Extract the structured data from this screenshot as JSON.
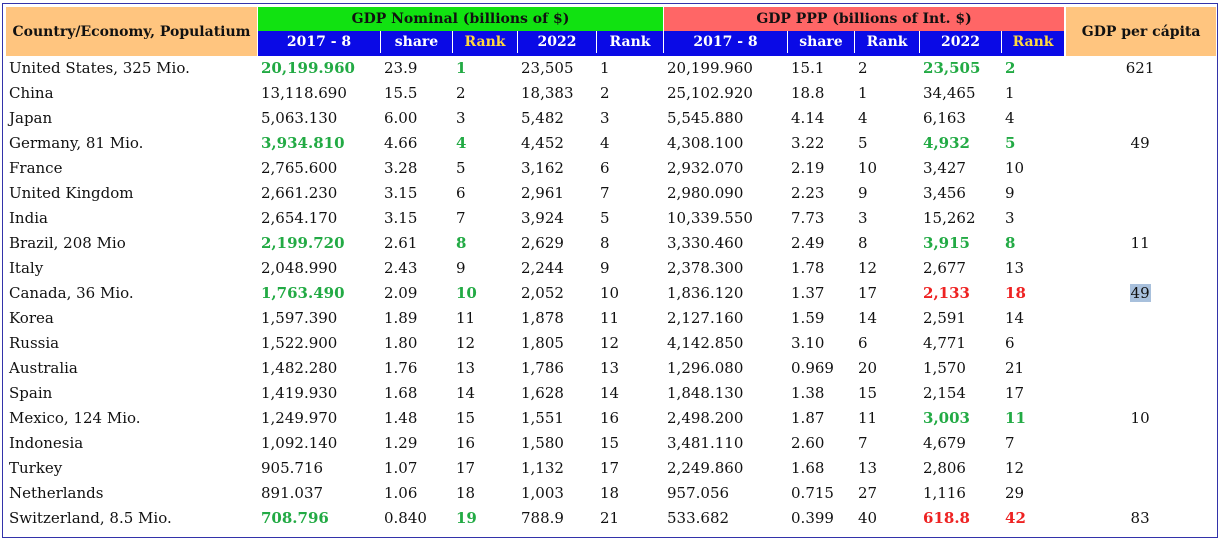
{
  "header": {
    "country": "Country/Economy, Populatium",
    "nominal_group": "GDP Nominal (billions of $)",
    "ppp_group": "GDP PPP (billions of Int. $)",
    "per_capita": "GDP per cápita",
    "sub": [
      "2017 - 8",
      "share",
      "Rank",
      "2022",
      "Rank",
      "2017 - 8",
      "share",
      "Rank",
      "2022",
      "Rank"
    ]
  },
  "colors": {
    "green_header": "#11e211",
    "red_header": "#ff6666",
    "orange_header": "#ffc57f",
    "blue_subheader": "#0a0ae6",
    "highlight_green": "#22aa44",
    "highlight_red": "#ee2222"
  },
  "rows": [
    {
      "country": "United States, 325 Mio.",
      "nom": "20,199.960",
      "nshare": "23.9",
      "nrank": "1",
      "n22": "23,505",
      "n22rank": "1",
      "ppp": "20,199.960",
      "pshare": "15.1",
      "prank": "2",
      "p22": "23,505",
      "p22rank": "2",
      "pc": "621",
      "hl_nom": "green",
      "hl_ppp22": "green"
    },
    {
      "country": "China",
      "nom": "13,118.690",
      "nshare": "15.5",
      "nrank": "2",
      "n22": "18,383",
      "n22rank": "2",
      "ppp": "25,102.920",
      "pshare": "18.8",
      "prank": "1",
      "p22": "34,465",
      "p22rank": "1",
      "pc": ""
    },
    {
      "country": "Japan",
      "nom": "5,063.130",
      "nshare": "6.00",
      "nrank": "3",
      "n22": "5,482",
      "n22rank": "3",
      "ppp": "5,545.880",
      "pshare": "4.14",
      "prank": "4",
      "p22": "6,163",
      "p22rank": "4",
      "pc": ""
    },
    {
      "country": "Germany, 81 Mio.",
      "nom": "3,934.810",
      "nshare": "4.66",
      "nrank": "4",
      "n22": "4,452",
      "n22rank": "4",
      "ppp": "4,308.100",
      "pshare": "3.22",
      "prank": "5",
      "p22": "4,932",
      "p22rank": "5",
      "pc": "49",
      "hl_nom": "green",
      "hl_ppp22": "green"
    },
    {
      "country": "France",
      "nom": "2,765.600",
      "nshare": "3.28",
      "nrank": "5",
      "n22": "3,162",
      "n22rank": "6",
      "ppp": "2,932.070",
      "pshare": "2.19",
      "prank": "10",
      "p22": "3,427",
      "p22rank": "10",
      "pc": ""
    },
    {
      "country": "United Kingdom",
      "nom": "2,661.230",
      "nshare": "3.15",
      "nrank": "6",
      "n22": "2,961",
      "n22rank": "7",
      "ppp": "2,980.090",
      "pshare": "2.23",
      "prank": "9",
      "p22": "3,456",
      "p22rank": "9",
      "pc": ""
    },
    {
      "country": "India",
      "nom": "2,654.170",
      "nshare": "3.15",
      "nrank": "7",
      "n22": "3,924",
      "n22rank": "5",
      "ppp": "10,339.550",
      "pshare": "7.73",
      "prank": "3",
      "p22": "15,262",
      "p22rank": "3",
      "pc": ""
    },
    {
      "country": "Brazil, 208 Mio",
      "nom": "2,199.720",
      "nshare": "2.61",
      "nrank": "8",
      "n22": "2,629",
      "n22rank": "8",
      "ppp": "3,330.460",
      "pshare": "2.49",
      "prank": "8",
      "p22": "3,915",
      "p22rank": "8",
      "pc": "11",
      "hl_nom": "green",
      "hl_ppp22": "green"
    },
    {
      "country": "Italy",
      "nom": "2,048.990",
      "nshare": "2.43",
      "nrank": "9",
      "n22": "2,244",
      "n22rank": "9",
      "ppp": "2,378.300",
      "pshare": "1.78",
      "prank": "12",
      "p22": "2,677",
      "p22rank": "13",
      "pc": ""
    },
    {
      "country": "Canada, 36 Mio.",
      "nom": "1,763.490",
      "nshare": "2.09",
      "nrank": "10",
      "n22": "2,052",
      "n22rank": "10",
      "ppp": "1,836.120",
      "pshare": "1.37",
      "prank": "17",
      "p22": "2,133",
      "p22rank": "18",
      "pc": "49",
      "hl_nom": "green",
      "hl_ppp22": "red",
      "pc_hl": true
    },
    {
      "country": "Korea",
      "nom": "1,597.390",
      "nshare": "1.89",
      "nrank": "11",
      "n22": "1,878",
      "n22rank": "11",
      "ppp": "2,127.160",
      "pshare": "1.59",
      "prank": "14",
      "p22": "2,591",
      "p22rank": "14",
      "pc": ""
    },
    {
      "country": "Russia",
      "nom": "1,522.900",
      "nshare": "1.80",
      "nrank": "12",
      "n22": "1,805",
      "n22rank": "12",
      "ppp": "4,142.850",
      "pshare": "3.10",
      "prank": "6",
      "p22": "4,771",
      "p22rank": "6",
      "pc": ""
    },
    {
      "country": "Australia",
      "nom": "1,482.280",
      "nshare": "1.76",
      "nrank": "13",
      "n22": "1,786",
      "n22rank": "13",
      "ppp": "1,296.080",
      "pshare": "0.969",
      "prank": "20",
      "p22": "1,570",
      "p22rank": "21",
      "pc": ""
    },
    {
      "country": "Spain",
      "nom": "1,419.930",
      "nshare": "1.68",
      "nrank": "14",
      "n22": "1,628",
      "n22rank": "14",
      "ppp": "1,848.130",
      "pshare": "1.38",
      "prank": "15",
      "p22": "2,154",
      "p22rank": "17",
      "pc": ""
    },
    {
      "country": "Mexico, 124 Mio.",
      "nom": "1,249.970",
      "nshare": "1.48",
      "nrank": "15",
      "n22": "1,551",
      "n22rank": "16",
      "ppp": "2,498.200",
      "pshare": "1.87",
      "prank": "11",
      "p22": "3,003",
      "p22rank": "11",
      "pc": "10",
      "hl_ppp22": "green"
    },
    {
      "country": "Indonesia",
      "nom": "1,092.140",
      "nshare": "1.29",
      "nrank": "16",
      "n22": "1,580",
      "n22rank": "15",
      "ppp": "3,481.110",
      "pshare": "2.60",
      "prank": "7",
      "p22": "4,679",
      "p22rank": "7",
      "pc": ""
    },
    {
      "country": "Turkey",
      "nom": "905.716",
      "nshare": "1.07",
      "nrank": "17",
      "n22": "1,132",
      "n22rank": "17",
      "ppp": "2,249.860",
      "pshare": "1.68",
      "prank": "13",
      "p22": "2,806",
      "p22rank": "12",
      "pc": ""
    },
    {
      "country": "Netherlands",
      "nom": "891.037",
      "nshare": "1.06",
      "nrank": "18",
      "n22": "1,003",
      "n22rank": "18",
      "ppp": "957.056",
      "pshare": "0.715",
      "prank": "27",
      "p22": "1,116",
      "p22rank": "29",
      "pc": ""
    },
    {
      "country": "Switzerland, 8.5 Mio.",
      "nom": "708.796",
      "nshare": "0.840",
      "nrank": "19",
      "n22": "788.9",
      "n22rank": "21",
      "ppp": "533.682",
      "pshare": "0.399",
      "prank": "40",
      "p22": "618.8",
      "p22rank": "42",
      "pc": "83",
      "hl_nom": "green",
      "hl_ppp22": "red"
    }
  ]
}
